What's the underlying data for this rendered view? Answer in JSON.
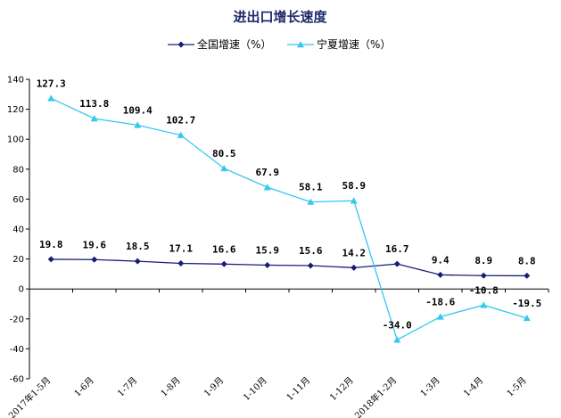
{
  "chart_data": {
    "type": "line",
    "title": "进出口增长速度",
    "xlabel": "",
    "ylabel": "",
    "categories": [
      "2017年1-5月",
      "1-6月",
      "1-7月",
      "1-8月",
      "1-9月",
      "1-10月",
      "1-11月",
      "1-12月",
      "2018年1-2月",
      "1-3月",
      "1-4月",
      "1-5月"
    ],
    "ylim": [
      -60,
      140
    ],
    "yticks": [
      -60,
      -40,
      -20,
      0,
      20,
      40,
      60,
      80,
      100,
      120,
      140
    ],
    "legend_position": "top",
    "grid": false,
    "series": [
      {
        "name": "全国增速（%）",
        "color": "#1a1a7a",
        "marker": "diamond",
        "values": [
          19.8,
          19.6,
          18.5,
          17.1,
          16.6,
          15.9,
          15.6,
          14.2,
          16.7,
          9.4,
          8.9,
          8.8
        ],
        "labels": [
          "19.8",
          "19.6",
          "18.5",
          "17.1",
          "16.6",
          "15.9",
          "15.6",
          "14.2",
          "16.7",
          "9.4",
          "8.9",
          "8.8"
        ]
      },
      {
        "name": "宁夏增速（%）",
        "color": "#33c8ee",
        "marker": "triangle",
        "values": [
          127.3,
          113.8,
          109.4,
          102.7,
          80.5,
          67.9,
          58.1,
          58.9,
          -34.0,
          -18.6,
          -10.8,
          -19.5
        ],
        "labels": [
          "127.3",
          "113.8",
          "109.4",
          "102.7",
          "80.5",
          "67.9",
          "58.1",
          "58.9",
          "-34.0",
          "-18.6",
          "-10.8",
          "-19.5"
        ]
      }
    ]
  }
}
